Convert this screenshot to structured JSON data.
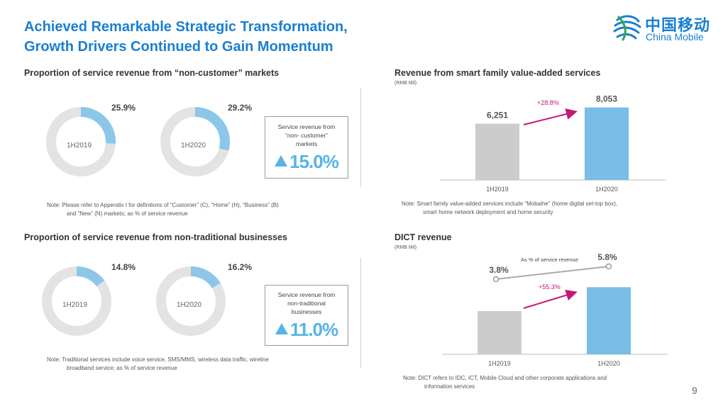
{
  "slide": {
    "title_line1": "Achieved Remarkable Strategic Transformation,",
    "title_line2": "Growth Drivers Continued to Gain Momentum",
    "logo_cn": "中国移动",
    "logo_en": "China Mobile",
    "page_number": "9",
    "colors": {
      "accent": "#1a7fcf",
      "bar_blue": "#78bde6",
      "bar_gray": "#cccccc",
      "arrow": "#c2187a",
      "donut_blue": "#8cc7ea",
      "donut_gray": "#e3e3e3"
    }
  },
  "section1": {
    "title": "Proportion of service revenue from “non-customer” markets",
    "box_text": [
      "Service revenue from",
      "“non- customer”",
      "markets"
    ],
    "box_value": "15.0%",
    "note_line1": "Note:  Please refer to Appendix I for definitions of “Customer” (C), “Home” (H), “Business” (B)",
    "note_line2": "and “New” (N) markets; as % of service revenue"
  },
  "section2": {
    "title": "Proportion of service revenue from non-traditional businesses",
    "box_text": [
      "Service revenue from",
      "non-traditional",
      "businesses"
    ],
    "box_value": "11.0%",
    "note_line1": "Note:  Traditional services include voice service, SMS/MMS, wireless data traffic, wireline",
    "note_line2": "broadband service;  as % of service revenue"
  },
  "section3": {
    "title": "Revenue from smart family value-added services",
    "unit": "(RMB Mil)",
    "growth_label": "+28.8%",
    "note_line1": "Note:  Smart family value-added services include “Mobaihe” (home digital set-top box),",
    "note_line2": "smart home network deployment and home security"
  },
  "section4": {
    "title": "DICT revenue",
    "unit": "(RMB Mil)",
    "growth_label": "+55.3%",
    "line_series_label": "As % of service revenue",
    "note_line1": "Note:   DICT refers to IDC, ICT, Mobile Cloud and other corporate applications and",
    "note_line2": "information services"
  },
  "chart_data": [
    {
      "type": "pie",
      "subtype": "donut",
      "group": "non-customer markets",
      "labels": [
        "1H2019",
        "1H2020"
      ],
      "values": [
        25.9,
        29.2
      ],
      "value_labels": [
        "25.9%",
        "29.2%"
      ],
      "unit": "%"
    },
    {
      "type": "pie",
      "subtype": "donut",
      "group": "non-traditional businesses",
      "labels": [
        "1H2019",
        "1H2020"
      ],
      "values": [
        14.8,
        16.2
      ],
      "value_labels": [
        "14.8%",
        "16.2%"
      ],
      "unit": "%"
    },
    {
      "type": "bar",
      "title": "Revenue from smart family value-added services",
      "categories": [
        "1H2019",
        "1H2020"
      ],
      "values": [
        6251,
        8053
      ],
      "value_labels": [
        "6,251",
        "8,053"
      ],
      "ylim": [
        0,
        8500
      ]
    },
    {
      "type": "bar",
      "title": "DICT revenue",
      "categories": [
        "1H2019",
        "1H2020"
      ],
      "values": [
        100,
        155.3
      ],
      "ylim": [
        0,
        164
      ],
      "line_series": {
        "name": "As % of service revenue",
        "values": [
          3.8,
          5.8
        ],
        "value_labels": [
          "3.8%",
          "5.8%"
        ]
      }
    }
  ]
}
